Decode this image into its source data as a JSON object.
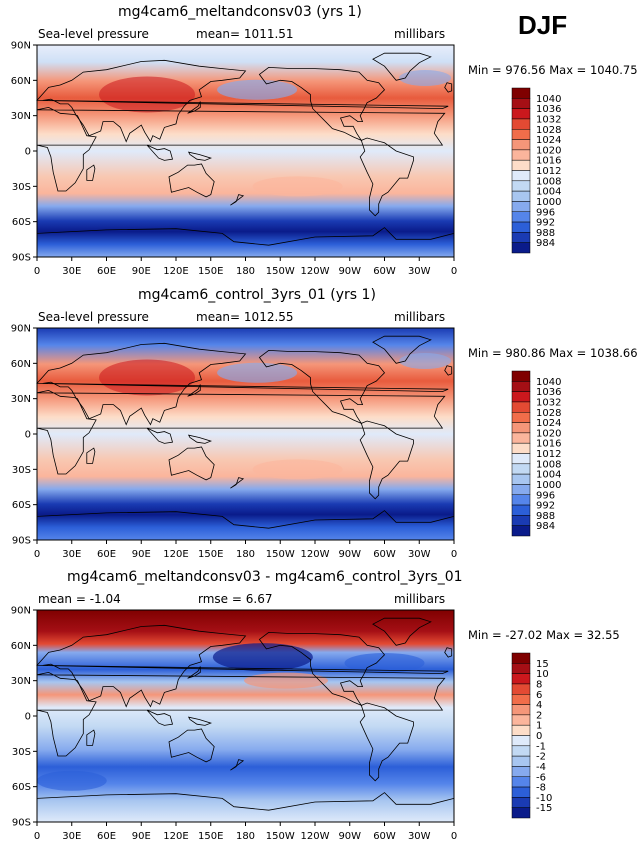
{
  "season": "DJF",
  "chart_data": [
    {
      "type": "heatmap",
      "title": "mg4cam6_meltandconsv03 (yrs 1)",
      "variable": "Sea-level pressure",
      "stat_label": "mean=",
      "stat_value": "1011.51",
      "units": "millibars",
      "minmax": "Min = 976.56 Max = 1040.75",
      "min": 976.56,
      "max": 1040.75,
      "colorbar_levels": [
        1040,
        1036,
        1032,
        1028,
        1024,
        1020,
        1016,
        1012,
        1008,
        1004,
        1000,
        996,
        992,
        988,
        984
      ],
      "colorbar_colors": [
        "#7f0000",
        "#a50f15",
        "#cb181d",
        "#e34a33",
        "#f16d4a",
        "#f59679",
        "#fbb59c",
        "#fdddc8",
        "#dfeafa",
        "#c2d9f3",
        "#a8c6f0",
        "#86aaee",
        "#5585ea",
        "#2c5fd8",
        "#1a3bb3",
        "#0a1b8a"
      ],
      "xaxis_ticks": [
        "0",
        "30E",
        "60E",
        "90E",
        "120E",
        "150E",
        "180",
        "150W",
        "120W",
        "90W",
        "60W",
        "30W",
        "0"
      ],
      "yaxis_ticks": [
        "90N",
        "60N",
        "30N",
        "0",
        "30S",
        "60S",
        "90S"
      ]
    },
    {
      "type": "heatmap",
      "title": "mg4cam6_control_3yrs_01 (yrs 1)",
      "variable": "Sea-level pressure",
      "stat_label": "mean=",
      "stat_value": "1012.55",
      "units": "millibars",
      "minmax": "Min = 980.86 Max = 1038.66",
      "min": 980.86,
      "max": 1038.66,
      "colorbar_levels": [
        1040,
        1036,
        1032,
        1028,
        1024,
        1020,
        1016,
        1012,
        1008,
        1004,
        1000,
        996,
        992,
        988,
        984
      ],
      "colorbar_colors": [
        "#7f0000",
        "#a50f15",
        "#cb181d",
        "#e34a33",
        "#f16d4a",
        "#f59679",
        "#fbb59c",
        "#fdddc8",
        "#dfeafa",
        "#c2d9f3",
        "#a8c6f0",
        "#86aaee",
        "#5585ea",
        "#2c5fd8",
        "#1a3bb3",
        "#0a1b8a"
      ],
      "xaxis_ticks": [
        "0",
        "30E",
        "60E",
        "90E",
        "120E",
        "150E",
        "180",
        "150W",
        "120W",
        "90W",
        "60W",
        "30W",
        "0"
      ],
      "yaxis_ticks": [
        "90N",
        "60N",
        "30N",
        "0",
        "30S",
        "60S",
        "90S"
      ]
    },
    {
      "type": "heatmap",
      "title": "mg4cam6_meltandconsv03 - mg4cam6_control_3yrs_01",
      "variable": "mean =  -1.04",
      "stat_label": "rmse =",
      "stat_value": "6.67",
      "units": "millibars",
      "minmax": "Min = -27.02 Max =  32.55",
      "min": -27.02,
      "max": 32.55,
      "colorbar_levels": [
        15,
        10,
        8,
        6,
        4,
        2,
        1,
        0,
        -1,
        -2,
        -4,
        -6,
        -8,
        -10,
        -15
      ],
      "colorbar_colors": [
        "#7f0000",
        "#a50f15",
        "#cb181d",
        "#e34a33",
        "#f16d4a",
        "#f59679",
        "#fbb59c",
        "#fdddc8",
        "#dfeafa",
        "#c2d9f3",
        "#a8c6f0",
        "#86aaee",
        "#5585ea",
        "#2c5fd8",
        "#1a3bb3",
        "#0a1b8a"
      ],
      "xaxis_ticks": [
        "0",
        "30E",
        "60E",
        "90E",
        "120E",
        "150E",
        "180",
        "150W",
        "120W",
        "90W",
        "60W",
        "30W",
        "0"
      ],
      "yaxis_ticks": [
        "90N",
        "60N",
        "30N",
        "0",
        "30S",
        "60S",
        "90S"
      ]
    }
  ]
}
